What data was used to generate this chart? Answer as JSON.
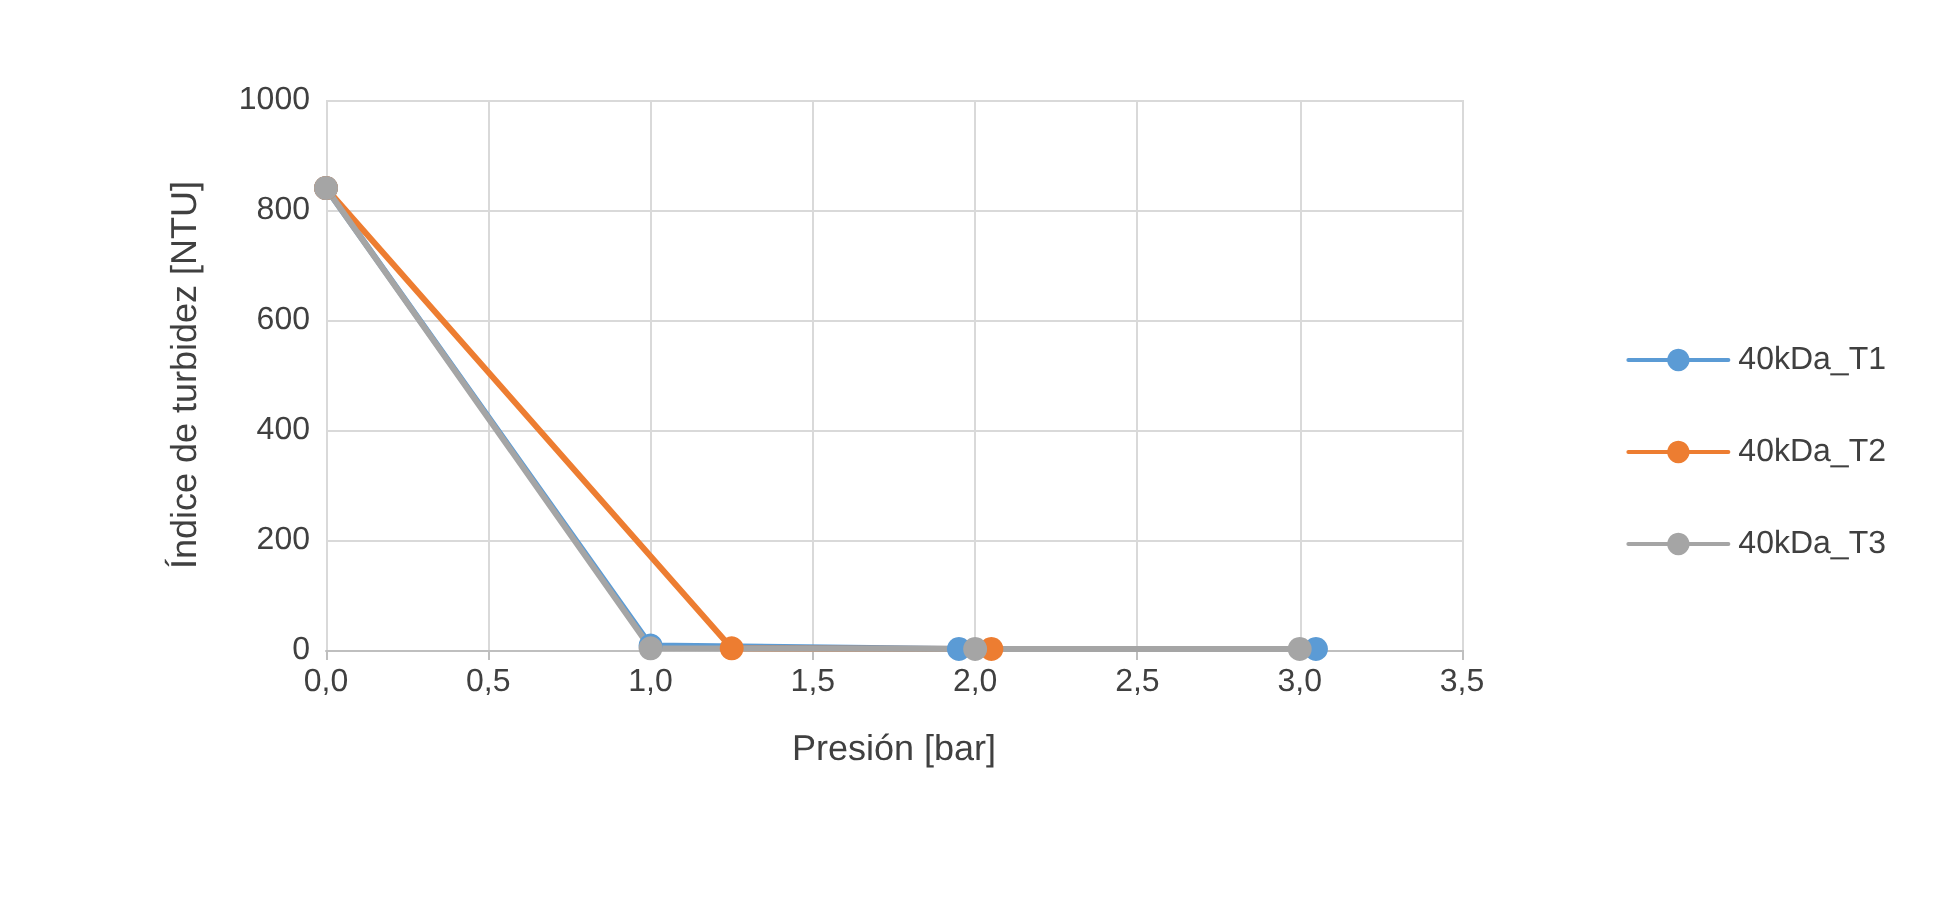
{
  "chart_data": {
    "type": "line",
    "xlabel": "Presión [bar]",
    "ylabel": "Índice de turbidez [NTU]",
    "xlim": [
      0,
      3.5
    ],
    "xticks": [
      {
        "value": 0,
        "label": "0,0"
      },
      {
        "value": 0.5,
        "label": "0,5"
      },
      {
        "value": 1,
        "label": "1,0"
      },
      {
        "value": 1.5,
        "label": "1,5"
      },
      {
        "value": 2,
        "label": "2,0"
      },
      {
        "value": 2.5,
        "label": "2,5"
      },
      {
        "value": 3,
        "label": "3,0"
      },
      {
        "value": 3.5,
        "label": "3,5"
      }
    ],
    "ylim": [
      0,
      1000
    ],
    "yticks": [
      0,
      200,
      400,
      600,
      800,
      1000
    ],
    "grid": true,
    "legend": "right",
    "marker": "circle",
    "line_style": "solid",
    "series": [
      {
        "name": "40kDa_T1",
        "color": "#5b9bd5",
        "x": [
          0,
          1,
          1.95,
          3.05
        ],
        "values": [
          840,
          8,
          2,
          2
        ]
      },
      {
        "name": "40kDa_T2",
        "color": "#ed7d31",
        "x": [
          0,
          1.25,
          2.05
        ],
        "values": [
          840,
          3,
          2
        ]
      },
      {
        "name": "40kDa_T3",
        "color": "#a5a5a5",
        "x": [
          0,
          1,
          2,
          3
        ],
        "values": [
          840,
          3,
          2,
          2
        ]
      }
    ]
  }
}
